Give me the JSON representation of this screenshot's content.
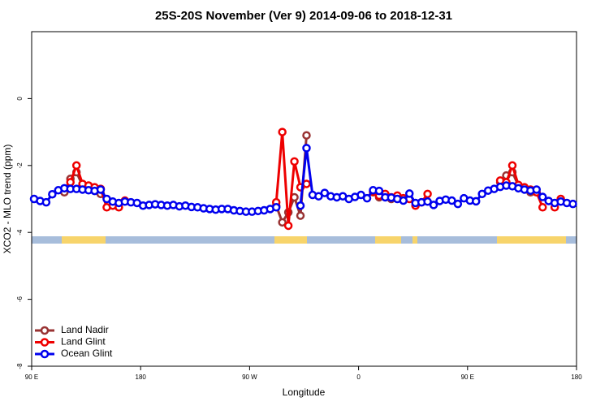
{
  "chart_data": {
    "type": "line",
    "title": "25S-20S November (Ver 9)   2014-09-06 to 2018-12-31",
    "x_label": "Longitude",
    "y_label": "XCO2 - MLO trend (ppm)",
    "xlim": [
      90,
      540
    ],
    "xticks": [
      {
        "value": 90,
        "label": "90 E"
      },
      180,
      {
        "value": 270,
        "label": "90 W"
      },
      {
        "value": 360,
        "label": "0"
      },
      {
        "value": 450,
        "label": "90 E"
      },
      {
        "value": 540,
        "label": "180"
      }
    ],
    "ylim": [
      -8,
      2
    ],
    "yticks": [
      0,
      -2,
      -4,
      -6,
      -8
    ],
    "legend": "bottom-left",
    "x": [
      92,
      97,
      102,
      107,
      112,
      117,
      122,
      127,
      132,
      137,
      142,
      147,
      152,
      157,
      162,
      167,
      172,
      177,
      182,
      187,
      192,
      197,
      202,
      207,
      212,
      217,
      222,
      227,
      232,
      237,
      242,
      247,
      252,
      257,
      262,
      267,
      272,
      277,
      282,
      287,
      292,
      297,
      302,
      307,
      312,
      317,
      322,
      327,
      332,
      337,
      342,
      347,
      352,
      357,
      362,
      367,
      372,
      377,
      382,
      387,
      392,
      397,
      402,
      407,
      412,
      417,
      422,
      427,
      432,
      437,
      442,
      447,
      452,
      457,
      462,
      467,
      472,
      477,
      482,
      487,
      492,
      497,
      502,
      507,
      512,
      517,
      522,
      527,
      532,
      537
    ],
    "series": [
      {
        "name": "Land Nadir",
        "color": "#993333",
        "values": [
          null,
          null,
          null,
          null,
          null,
          -2.8,
          -2.4,
          -2.2,
          -2.6,
          -2.7,
          -2.75,
          -2.85,
          null,
          null,
          null,
          null,
          null,
          null,
          null,
          null,
          null,
          null,
          null,
          null,
          null,
          null,
          null,
          null,
          null,
          null,
          null,
          null,
          null,
          null,
          null,
          null,
          null,
          null,
          null,
          null,
          -3.2,
          -3.7,
          -3.4,
          -2.95,
          -3.5,
          -1.1,
          null,
          null,
          null,
          null,
          null,
          null,
          null,
          null,
          null,
          null,
          -2.8,
          -2.95,
          -2.9,
          -3.0,
          null,
          null,
          null,
          null,
          null,
          null,
          null,
          null,
          null,
          null,
          null,
          null,
          null,
          null,
          null,
          null,
          null,
          -2.5,
          -2.3,
          -2.2,
          -2.6,
          -2.7,
          -2.8,
          null,
          null,
          null,
          null,
          null,
          null,
          null
        ]
      },
      {
        "name": "Land Glint",
        "color": "#ee0000",
        "values": [
          null,
          null,
          null,
          null,
          null,
          null,
          -2.5,
          -2.0,
          -2.55,
          -2.6,
          -2.65,
          -2.7,
          -3.25,
          -3.2,
          -3.25,
          -3.05,
          null,
          null,
          null,
          null,
          null,
          null,
          null,
          null,
          null,
          null,
          null,
          null,
          null,
          null,
          null,
          null,
          null,
          null,
          null,
          null,
          null,
          null,
          null,
          null,
          -3.1,
          -1.0,
          -3.8,
          -1.88,
          -2.65,
          -2.55,
          null,
          null,
          null,
          null,
          null,
          null,
          null,
          null,
          null,
          null,
          -2.78,
          -2.9,
          -2.85,
          -2.95,
          -2.9,
          -2.98,
          -3.0,
          -3.2,
          -3.1,
          -2.85,
          null,
          null,
          null,
          null,
          null,
          null,
          null,
          null,
          null,
          null,
          null,
          -2.45,
          -2.5,
          -2.0,
          -2.58,
          -2.65,
          -2.72,
          -2.8,
          -3.25,
          null,
          -3.25,
          -3.0,
          null,
          null
        ]
      },
      {
        "name": "Ocean Glint",
        "color": "#0000ee",
        "values": [
          -3.0,
          -3.06,
          -3.1,
          -2.86,
          -2.74,
          -2.68,
          -2.7,
          -2.7,
          -2.72,
          -2.74,
          -2.76,
          -2.72,
          -3.0,
          -3.08,
          -3.12,
          -3.08,
          -3.1,
          -3.12,
          -3.2,
          -3.18,
          -3.16,
          -3.18,
          -3.2,
          -3.18,
          -3.22,
          -3.2,
          -3.24,
          -3.25,
          -3.28,
          -3.3,
          -3.32,
          -3.3,
          -3.3,
          -3.34,
          -3.36,
          -3.38,
          -3.38,
          -3.36,
          -3.34,
          -3.3,
          -3.25,
          null,
          null,
          null,
          -3.2,
          -1.48,
          -2.88,
          -2.92,
          -2.82,
          -2.92,
          -2.95,
          -2.92,
          -3.0,
          -2.94,
          -2.88,
          -2.98,
          -2.74,
          -2.76,
          -2.95,
          -2.96,
          -3.0,
          -3.05,
          -2.84,
          -3.12,
          -3.1,
          -3.08,
          -3.18,
          -3.06,
          -3.02,
          -3.05,
          -3.15,
          -2.98,
          -3.05,
          -3.07,
          -2.85,
          -2.75,
          -2.7,
          -2.64,
          -2.6,
          -2.62,
          -2.68,
          -2.72,
          -2.75,
          -2.72,
          -2.94,
          -3.06,
          -3.12,
          -3.08,
          -3.12,
          -3.15
        ]
      }
    ]
  }
}
